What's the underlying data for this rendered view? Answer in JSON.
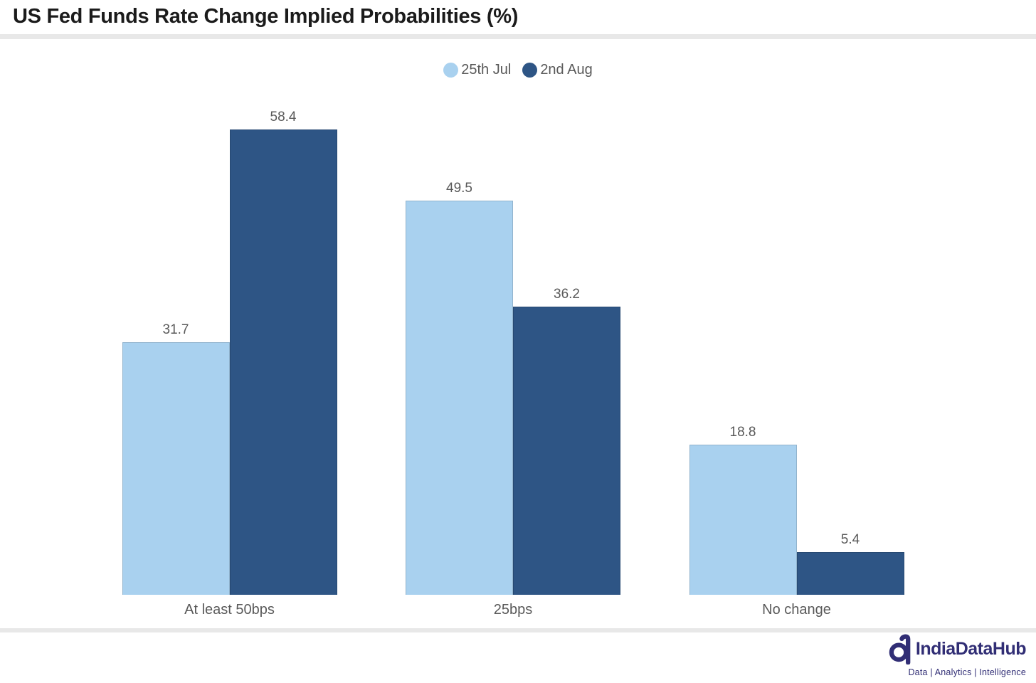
{
  "title": "US Fed Funds Rate Change Implied Probabilities (%)",
  "chart_data": {
    "type": "bar",
    "title": "US Fed Funds Rate Change Implied Probabilities (%)",
    "categories": [
      "At least 50bps",
      "25bps",
      "No change"
    ],
    "series": [
      {
        "name": "25th Jul",
        "color": "#A9D1EF",
        "values": [
          31.7,
          49.5,
          18.8
        ]
      },
      {
        "name": "2nd Aug",
        "color": "#2E5585",
        "values": [
          58.4,
          36.2,
          5.4
        ]
      }
    ],
    "xlabel": "",
    "ylabel": "",
    "ylim": [
      0,
      65
    ],
    "grid": false,
    "axes_visible": false,
    "legend_position": "top-center",
    "value_labels": true
  },
  "colors": {
    "title_text": "#1B1B1B",
    "label_text": "#595959",
    "divider": "#E8E8E8",
    "brand_navy": "#312E75"
  },
  "footer": {
    "brand": "IndiaDataHub",
    "tagline": "Data | Analytics | Intelligence",
    "logo_icon": "indiadatahub-d-magnifier-icon"
  }
}
